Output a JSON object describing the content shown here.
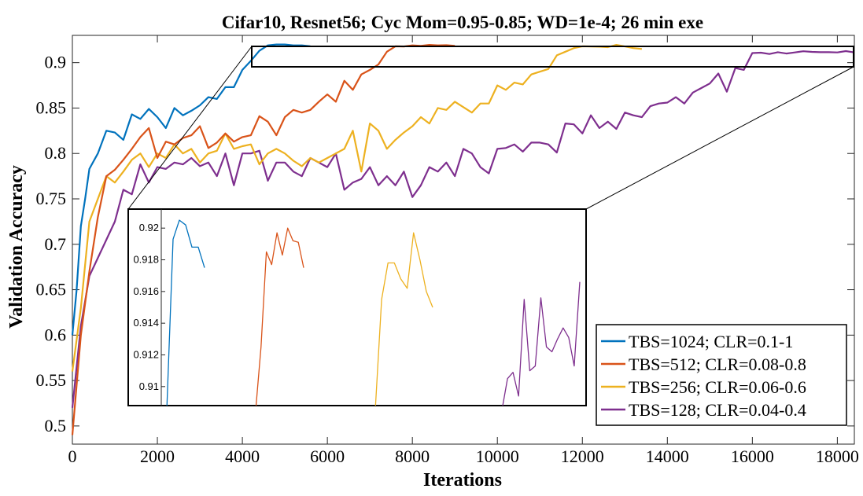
{
  "chart_data": {
    "type": "line",
    "title": "Cifar10, Resnet56; Cyc Mom=0.95-0.85; WD=1e-4; 26 min exe",
    "xlabel": "Iterations",
    "ylabel": "Validation Accuracy",
    "xlim": [
      0,
      18400
    ],
    "ylim": [
      0.48,
      0.93
    ],
    "xticks": [
      0,
      2000,
      4000,
      6000,
      8000,
      10000,
      12000,
      14000,
      16000,
      18000
    ],
    "xtick_labels": [
      "0",
      "2000",
      "4000",
      "6000",
      "8000",
      "10000",
      "12000",
      "14000",
      "16000",
      "18000"
    ],
    "yticks": [
      0.5,
      0.55,
      0.6,
      0.65,
      0.7,
      0.75,
      0.8,
      0.85,
      0.9
    ],
    "ytick_labels": [
      "0.5",
      "0.55",
      "0.6",
      "0.65",
      "0.7",
      "0.75",
      "0.8",
      "0.85",
      "0.9"
    ],
    "grid": false,
    "legend_position": "bottom-right",
    "series": [
      {
        "name": "TBS=1024; CLR=0.1-1",
        "color": "#0072BD",
        "x": [
          0,
          100,
          200,
          300,
          400,
          600,
          800,
          1000,
          1200,
          1400,
          1600,
          1800,
          2000,
          2200,
          2400,
          2600,
          2800,
          3000,
          3200,
          3400,
          3600,
          3800,
          4000,
          4200,
          4400,
          4600,
          4800,
          5000,
          5200,
          5400,
          5600
        ],
        "y": [
          0.6,
          0.65,
          0.72,
          0.75,
          0.783,
          0.8,
          0.825,
          0.823,
          0.815,
          0.843,
          0.838,
          0.849,
          0.84,
          0.828,
          0.85,
          0.842,
          0.847,
          0.853,
          0.862,
          0.86,
          0.873,
          0.873,
          0.892,
          0.902,
          0.913,
          0.919,
          0.92,
          0.92,
          0.919,
          0.919,
          0.918
        ]
      },
      {
        "name": "TBS=512; CLR=0.08-0.8",
        "color": "#D95319",
        "x": [
          0,
          200,
          400,
          600,
          800,
          1000,
          1200,
          1400,
          1600,
          1800,
          2000,
          2200,
          2400,
          2600,
          2800,
          3000,
          3200,
          3400,
          3600,
          3800,
          4000,
          4200,
          4400,
          4600,
          4800,
          5000,
          5200,
          5400,
          5600,
          5800,
          6000,
          6200,
          6400,
          6600,
          6800,
          7000,
          7200,
          7400,
          7600,
          7800,
          8000,
          8200,
          8400,
          8600,
          8800,
          9000
        ],
        "y": [
          0.49,
          0.6,
          0.67,
          0.73,
          0.775,
          0.782,
          0.793,
          0.805,
          0.818,
          0.828,
          0.795,
          0.813,
          0.81,
          0.817,
          0.82,
          0.83,
          0.806,
          0.812,
          0.822,
          0.813,
          0.818,
          0.82,
          0.841,
          0.835,
          0.82,
          0.84,
          0.848,
          0.845,
          0.848,
          0.857,
          0.865,
          0.857,
          0.88,
          0.87,
          0.887,
          0.892,
          0.898,
          0.912,
          0.918,
          0.9178,
          0.919,
          0.9185,
          0.9195,
          0.919,
          0.9192,
          0.9185
        ]
      },
      {
        "name": "TBS=256; CLR=0.06-0.6",
        "color": "#EDB120",
        "x": [
          0,
          200,
          400,
          600,
          800,
          1000,
          1200,
          1400,
          1600,
          1800,
          2000,
          2200,
          2400,
          2600,
          2800,
          3000,
          3200,
          3400,
          3600,
          3800,
          4000,
          4200,
          4400,
          4600,
          4800,
          5000,
          5200,
          5400,
          5600,
          5800,
          6000,
          6200,
          6400,
          6600,
          6800,
          7000,
          7200,
          7400,
          7600,
          7800,
          8000,
          8200,
          8400,
          8600,
          8800,
          9000,
          9200,
          9400,
          9600,
          9800,
          10000,
          10200,
          10400,
          10600,
          10800,
          11000,
          11200,
          11400,
          11600,
          11800,
          12000,
          12200,
          12400,
          12600,
          12800,
          13000,
          13200,
          13400
        ],
        "y": [
          0.56,
          0.63,
          0.725,
          0.75,
          0.775,
          0.768,
          0.78,
          0.793,
          0.8,
          0.785,
          0.8,
          0.795,
          0.81,
          0.8,
          0.805,
          0.79,
          0.8,
          0.803,
          0.822,
          0.805,
          0.808,
          0.81,
          0.788,
          0.8,
          0.805,
          0.8,
          0.792,
          0.786,
          0.795,
          0.79,
          0.795,
          0.8,
          0.805,
          0.825,
          0.78,
          0.833,
          0.825,
          0.805,
          0.815,
          0.823,
          0.83,
          0.84,
          0.833,
          0.85,
          0.848,
          0.857,
          0.851,
          0.845,
          0.855,
          0.855,
          0.875,
          0.87,
          0.878,
          0.876,
          0.887,
          0.89,
          0.893,
          0.908,
          0.912,
          0.916,
          0.918,
          0.9178,
          0.9175,
          0.917,
          0.9195,
          0.9178,
          0.916,
          0.915
        ]
      },
      {
        "name": "TBS=128; CLR=0.04-0.4",
        "color": "#7E2F8E",
        "x": [
          0,
          200,
          400,
          600,
          800,
          1000,
          1200,
          1400,
          1600,
          1800,
          2000,
          2200,
          2400,
          2600,
          2800,
          3000,
          3200,
          3400,
          3600,
          3800,
          4000,
          4200,
          4400,
          4600,
          4800,
          5000,
          5200,
          5400,
          5600,
          5800,
          6000,
          6200,
          6400,
          6600,
          6800,
          7000,
          7200,
          7400,
          7600,
          7800,
          8000,
          8200,
          8400,
          8600,
          8800,
          9000,
          9200,
          9400,
          9600,
          9800,
          10000,
          10200,
          10400,
          10600,
          10800,
          11000,
          11200,
          11400,
          11600,
          11800,
          12000,
          12200,
          12400,
          12600,
          12800,
          13000,
          13200,
          13400,
          13600,
          13800,
          14000,
          14200,
          14400,
          14600,
          14800,
          15000,
          15200,
          15400,
          15600,
          15800,
          16000,
          16200,
          16400,
          16600,
          16800,
          17000,
          17200,
          17400,
          17600,
          17800,
          18000,
          18200,
          18400
        ],
        "y": [
          0.52,
          0.61,
          0.665,
          0.685,
          0.705,
          0.725,
          0.76,
          0.755,
          0.788,
          0.768,
          0.785,
          0.783,
          0.79,
          0.788,
          0.795,
          0.786,
          0.79,
          0.775,
          0.8,
          0.765,
          0.8,
          0.8,
          0.803,
          0.77,
          0.79,
          0.79,
          0.78,
          0.775,
          0.795,
          0.79,
          0.785,
          0.8,
          0.76,
          0.768,
          0.772,
          0.785,
          0.765,
          0.775,
          0.765,
          0.78,
          0.752,
          0.765,
          0.785,
          0.78,
          0.79,
          0.775,
          0.805,
          0.8,
          0.785,
          0.778,
          0.805,
          0.806,
          0.81,
          0.802,
          0.812,
          0.812,
          0.81,
          0.801,
          0.833,
          0.832,
          0.822,
          0.842,
          0.828,
          0.835,
          0.827,
          0.845,
          0.842,
          0.84,
          0.852,
          0.855,
          0.856,
          0.862,
          0.855,
          0.867,
          0.872,
          0.877,
          0.888,
          0.868,
          0.894,
          0.892,
          0.9105,
          0.911,
          0.9095,
          0.9115,
          0.91,
          0.9112,
          0.9125,
          0.9118,
          0.9115,
          0.9115,
          0.9112,
          0.9127,
          0.9112
        ]
      }
    ],
    "inset": {
      "ylim": [
        0.9088,
        0.9212
      ],
      "yticks": [
        0.91,
        0.912,
        0.914,
        0.916,
        0.918,
        0.92
      ],
      "ytick_labels": [
        "0.91",
        "0.912",
        "0.914",
        "0.916",
        "0.918",
        "0.92"
      ],
      "series": [
        {
          "name": "TBS=1024; CLR=0.1-1",
          "color": "#0072BD",
          "y": [
            0.9085,
            0.9193,
            0.9205,
            0.9202,
            0.9188,
            0.9188,
            0.9175
          ]
        },
        {
          "name": "TBS=512; CLR=0.08-0.8",
          "color": "#D95319",
          "y": [
            0.9085,
            0.9125,
            0.9185,
            0.9177,
            0.9197,
            0.9183,
            0.92,
            0.9192,
            0.9191,
            0.9175
          ]
        },
        {
          "name": "TBS=256; CLR=0.06-0.6",
          "color": "#EDB120",
          "y": [
            0.9085,
            0.9155,
            0.9178,
            0.9178,
            0.9168,
            0.9162,
            0.9197,
            0.918,
            0.916,
            0.915
          ]
        },
        {
          "name": "TBS=128; CLR=0.04-0.4",
          "color": "#7E2F8E",
          "y": [
            0.9085,
            0.9105,
            0.9109,
            0.9094,
            0.9155,
            0.911,
            0.9113,
            0.9156,
            0.9125,
            0.9122,
            0.913,
            0.9137,
            0.9131,
            0.9113,
            0.9166
          ]
        }
      ]
    }
  }
}
